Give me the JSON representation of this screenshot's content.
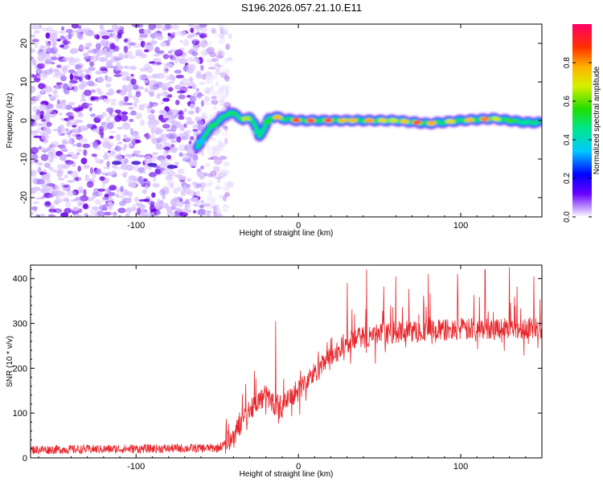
{
  "title": "S196.2026.057.21.10.E11",
  "colors": {
    "snr_line": "#e8262b",
    "frame": "#000000",
    "speckle_light": "#d9c2ff",
    "speckle_dark": "#6a00e8"
  },
  "chart_data": [
    {
      "type": "heatmap",
      "name": "spectrogram",
      "xlabel": "Height of straight line (km)",
      "ylabel": "Frequency (Hz)",
      "xlim": [
        -165,
        150
      ],
      "ylim": [
        -25,
        25
      ],
      "xticks": [
        -100,
        0,
        100
      ],
      "yticks": [
        -20,
        -10,
        0,
        10,
        20
      ],
      "noise_region_x": [
        -165,
        -50
      ],
      "ridge": {
        "x": [
          -62,
          -58,
          -52,
          -46,
          -42,
          -38,
          -34,
          -30,
          -27,
          -24,
          -21,
          -18,
          -14,
          -10,
          0,
          20,
          40,
          60,
          80,
          100,
          120,
          140,
          148
        ],
        "freq": [
          -7,
          -4,
          -1,
          1,
          2,
          1.5,
          0,
          1,
          -1,
          -4,
          -2,
          0.5,
          1,
          0.5,
          0,
          0,
          0,
          0,
          -0.8,
          0,
          0.5,
          -0.5,
          -0.5
        ],
        "amplitude": [
          0.35,
          0.45,
          0.5,
          0.55,
          0.6,
          0.55,
          0.5,
          0.9,
          0.6,
          0.4,
          0.5,
          0.6,
          0.95,
          0.75,
          0.95,
          0.95,
          0.95,
          0.8,
          0.9,
          0.8,
          0.9,
          0.6,
          0.5
        ]
      },
      "colorbar": {
        "label": "Normalized spectral amplitude",
        "range": [
          0,
          1
        ],
        "ticks": [
          0.0,
          0.2,
          0.4,
          0.6,
          0.8
        ],
        "tick_labels": [
          "0.0",
          "0.2",
          "0.4",
          "0.6",
          "0.8"
        ]
      }
    },
    {
      "type": "line",
      "name": "snr",
      "xlabel": "Height of straight line (km)",
      "ylabel": "SNR (10 * v/v)",
      "xlim": [
        -165,
        150
      ],
      "ylim": [
        0,
        430
      ],
      "xticks": [
        -100,
        0,
        100
      ],
      "yticks": [
        0,
        100,
        200,
        300,
        400
      ],
      "trend": {
        "x": [
          -165,
          -50,
          -45,
          -40,
          -30,
          -20,
          -15,
          -10,
          0,
          10,
          20,
          30,
          40,
          60,
          80,
          100,
          120,
          150
        ],
        "y": [
          18,
          22,
          30,
          50,
          110,
          140,
          120,
          115,
          150,
          190,
          225,
          255,
          270,
          280,
          285,
          285,
          290,
          290
        ]
      },
      "noise_amplitude": [
        {
          "x_from": -165,
          "x_to": -45,
          "amp": 10
        },
        {
          "x_from": -45,
          "x_to": 150,
          "amp": 25
        }
      ],
      "spikes": [
        {
          "x": -14,
          "y": 305
        },
        {
          "x": 30,
          "y": 390
        },
        {
          "x": 42,
          "y": 420
        },
        {
          "x": 60,
          "y": 405
        },
        {
          "x": 80,
          "y": 410
        },
        {
          "x": 98,
          "y": 410
        },
        {
          "x": 115,
          "y": 420
        },
        {
          "x": 130,
          "y": 425
        },
        {
          "x": 145,
          "y": 405
        }
      ]
    }
  ]
}
